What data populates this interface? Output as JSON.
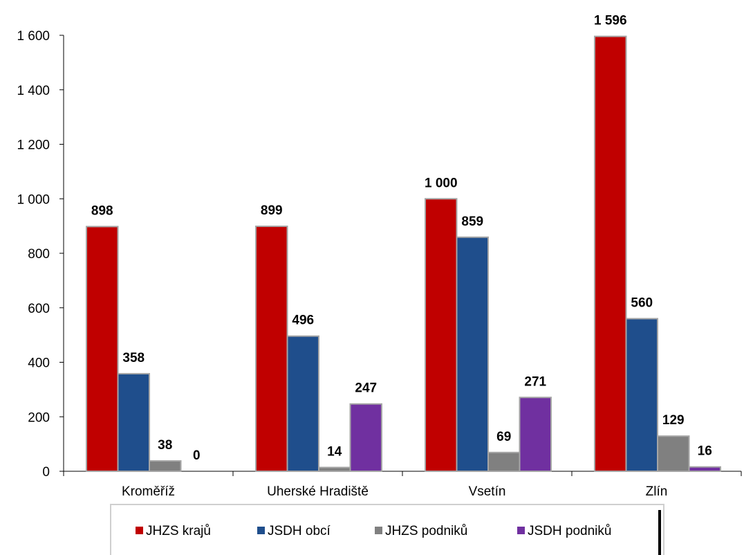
{
  "chart_data": {
    "type": "bar",
    "title": "",
    "xlabel": "",
    "ylabel": "",
    "categories": [
      "Kroměříž",
      "Uherské Hradiště",
      "Vsetín",
      "Zlín"
    ],
    "series": [
      {
        "name": "JHZS krajů",
        "color": "#c00000",
        "values": [
          898,
          899,
          1000,
          1596
        ],
        "labels": [
          "898",
          "899",
          "1 000",
          "1 596"
        ]
      },
      {
        "name": "JSDH obcí",
        "color": "#1f4e8c",
        "values": [
          358,
          496,
          859,
          560
        ],
        "labels": [
          "358",
          "496",
          "859",
          "560"
        ]
      },
      {
        "name": "JHZS podniků",
        "color": "#808080",
        "values": [
          38,
          14,
          69,
          129
        ],
        "labels": [
          "38",
          "14",
          "69",
          "129"
        ]
      },
      {
        "name": "JSDH podniků",
        "color": "#7030a0",
        "values": [
          0,
          247,
          271,
          16
        ],
        "labels": [
          "0",
          "247",
          "271",
          "16"
        ]
      }
    ],
    "ylim": [
      0,
      1600
    ],
    "yticks": [
      0,
      200,
      400,
      600,
      800,
      1000,
      1200,
      1400,
      1600
    ],
    "ytick_labels": [
      "0",
      "200",
      "400",
      "600",
      "800",
      "1 000",
      "1 200",
      "1 400",
      "1 600"
    ],
    "grid": false,
    "legend_position": "bottom"
  }
}
